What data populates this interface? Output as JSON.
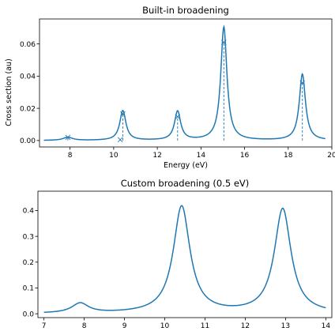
{
  "colors": {
    "series": "#1f77b4"
  },
  "chart_data": [
    {
      "type": "line",
      "title": "Built-in broadening",
      "xlabel": "Energy (eV)",
      "ylabel": "Cross section (au)",
      "xlim": [
        6.6,
        20.0
      ],
      "ylim": [
        -0.004,
        0.0755
      ],
      "xticks": [
        8,
        10,
        12,
        14,
        16,
        18,
        20
      ],
      "yticks": [
        0.0,
        0.02,
        0.04,
        0.06
      ],
      "ytick_labels": [
        "0.00",
        "0.02",
        "0.04",
        "0.06"
      ],
      "x_range": [
        6.8,
        19.7
      ],
      "peaks": [
        {
          "x": 7.9,
          "height": 0.002,
          "gamma": 0.25
        },
        {
          "x": 10.42,
          "height": 0.0185,
          "gamma": 0.17
        },
        {
          "x": 12.93,
          "height": 0.018,
          "gamma": 0.17
        },
        {
          "x": 15.05,
          "height": 0.0705,
          "gamma": 0.17
        },
        {
          "x": 18.65,
          "height": 0.0412,
          "gamma": 0.17
        }
      ],
      "sticks": [
        {
          "x": 7.9,
          "y": 0.002
        },
        {
          "x": 10.3,
          "y": 0.0005
        },
        {
          "x": 10.42,
          "y": 0.0165
        },
        {
          "x": 12.93,
          "y": 0.0148
        },
        {
          "x": 15.05,
          "y": 0.061
        },
        {
          "x": 18.65,
          "y": 0.0358
        }
      ],
      "baseline": 0.0
    },
    {
      "type": "line",
      "title": "Custom broadening (0.5 eV)",
      "xlabel": "",
      "ylabel": "",
      "xlim": [
        6.85,
        14.15
      ],
      "ylim": [
        -0.015,
        0.475
      ],
      "xticks": [
        7,
        8,
        9,
        10,
        11,
        12,
        13,
        14
      ],
      "yticks": [
        0.0,
        0.1,
        0.2,
        0.3,
        0.4
      ],
      "ytick_labels": [
        "0.0",
        "0.1",
        "0.2",
        "0.3",
        "0.4"
      ],
      "x_range": [
        7.0,
        14.0
      ],
      "peaks": [
        {
          "x": 7.9,
          "height": 0.038,
          "gamma": 0.25
        },
        {
          "x": 10.42,
          "height": 0.415,
          "gamma": 0.25
        },
        {
          "x": 12.93,
          "height": 0.405,
          "gamma": 0.25
        }
      ],
      "baseline": 0.0
    }
  ]
}
